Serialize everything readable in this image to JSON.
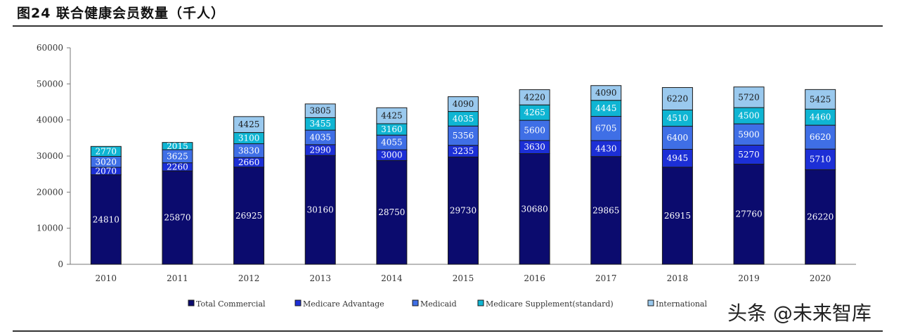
{
  "title": "图24 联合健康会员数量（千人）",
  "watermark": "头条 @未来智库",
  "chart_data": {
    "type": "bar",
    "stacked": true,
    "categories": [
      "2010",
      "2011",
      "2012",
      "2013",
      "2014",
      "2015",
      "2016",
      "2017",
      "2018",
      "2019",
      "2020"
    ],
    "ylim": [
      0,
      60000
    ],
    "yticks": [
      0,
      10000,
      20000,
      30000,
      40000,
      50000,
      60000
    ],
    "grid": false,
    "legend_position": "bottom",
    "series": [
      {
        "name": "Total Commercial",
        "color": "#0b0b6e",
        "values": [
          24810,
          25870,
          26925,
          30160,
          28750,
          29730,
          30680,
          29865,
          26915,
          27760,
          26220
        ]
      },
      {
        "name": "Medicare Advantage",
        "color": "#1c2fd6",
        "values": [
          2070,
          2260,
          2660,
          2990,
          3000,
          3235,
          3630,
          4430,
          4945,
          5270,
          5710
        ]
      },
      {
        "name": "Medicaid",
        "color": "#3f6fe6",
        "values": [
          3020,
          3625,
          3830,
          4035,
          4055,
          5356,
          5600,
          6705,
          6400,
          5900,
          6620
        ]
      },
      {
        "name": "Medicare Supplement(standard)",
        "color": "#0fb5d3",
        "values": [
          2770,
          2015,
          3100,
          3455,
          3160,
          4035,
          4265,
          4445,
          4510,
          4500,
          4460
        ]
      },
      {
        "name": "International",
        "color": "#9ac9ee",
        "values": [
          0,
          0,
          4425,
          3805,
          4425,
          4090,
          4220,
          4090,
          6220,
          5720,
          5425
        ]
      }
    ],
    "segment_labels": [
      [
        "24810",
        "25870",
        "26925",
        "30160",
        "28750",
        "29730",
        "30680",
        "29865",
        "26915",
        "27760",
        "26220"
      ],
      [
        "2070",
        "2260",
        "2660",
        "2990",
        "3000",
        "3235",
        "3630",
        "4430",
        "4945",
        "5270",
        "5710"
      ],
      [
        "3020",
        "3625",
        "3830",
        "4035",
        "4055",
        "5356",
        "5600",
        "6705",
        "6400",
        "5900",
        "6620"
      ],
      [
        "2770",
        "2015",
        "3100",
        "3455",
        "3160",
        "4035",
        "4265",
        "4445",
        "4510",
        "4500",
        "4460"
      ],
      [
        "",
        "",
        "4425",
        "3805",
        "4425",
        "4090",
        "4220",
        "4090",
        "6220",
        "5720",
        "5425"
      ]
    ]
  }
}
